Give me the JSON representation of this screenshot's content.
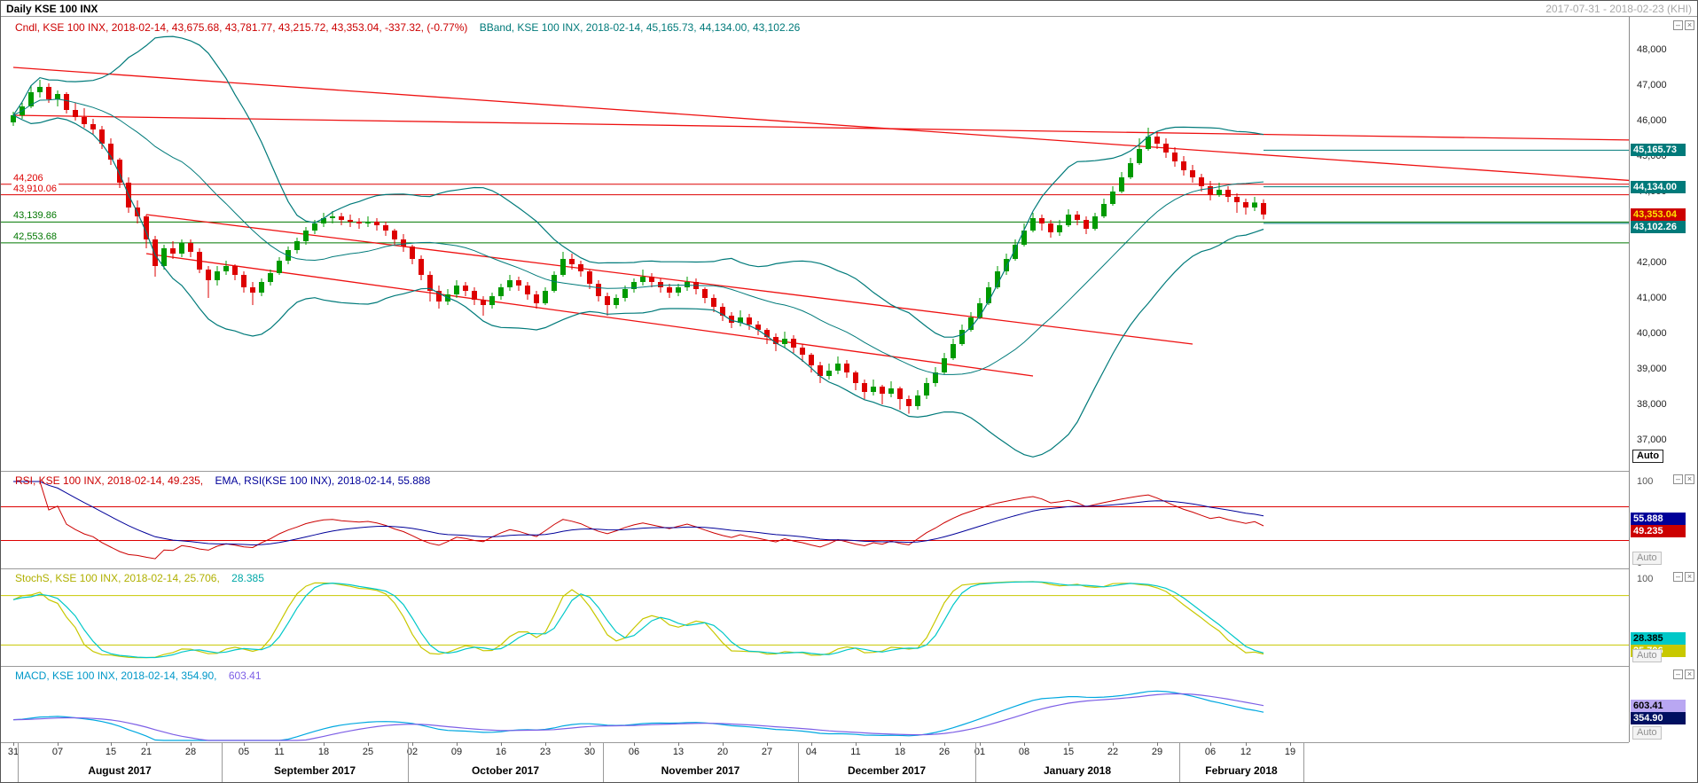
{
  "titlebar": {
    "title": "Daily KSE 100 INX",
    "date_range": "2017-07-31 - 2018-02-23 (KHI)"
  },
  "colors": {
    "bull": "#009a00",
    "bear": "#dd0000",
    "bband": "#007a7a",
    "trend": "#ee1111",
    "support": "#007700",
    "rsi": "#cc0000",
    "rsi_ema": "#000099",
    "stoch_k": "#c8c800",
    "stoch_d": "#00c8c8",
    "macd": "#00a8e0",
    "macd_signal": "#7d5fe6"
  },
  "main_panel": {
    "legend_cndl": "Cndl, KSE 100 INX, 2018-02-14, 43,675.68, 43,781.77, 43,215.72, 43,353.04, -337.32, (-0.77%)",
    "legend_bband": "BBand, KSE 100 INX, 2018-02-14, 45,165.73, 44,134.00, 43,102.26",
    "auto_label": "Auto",
    "y_tick_labels": [
      "48,000",
      "47,000",
      "46,000",
      "45,000",
      "44,000",
      "43,000",
      "42,000",
      "41,000",
      "40,000",
      "39,000",
      "38,000",
      "37,000"
    ],
    "badges": [
      {
        "label": "45,165.73",
        "value": 45165.73,
        "bg": "#007a7a",
        "fg": "#ffffff"
      },
      {
        "label": "44,134.00",
        "value": 44134.0,
        "bg": "#007a7a",
        "fg": "#ffffff"
      },
      {
        "label": "43,353.04",
        "value": 43353.04,
        "bg": "#cc0000",
        "fg": "#ffe400"
      },
      {
        "label": "43,102.26",
        "value": 43102.26,
        "bg": "#007a7a",
        "fg": "#ffffff"
      }
    ]
  },
  "rsi_panel": {
    "legend_rsi": "RSI, KSE 100 INX, 2018-02-14, 49.235,",
    "legend_ema": "EMA, RSI(KSE 100 INX), 2018-02-14, 55.888",
    "levels": [
      70,
      30
    ],
    "scale": [
      "100",
      "0"
    ],
    "badges": [
      {
        "label": "55.888",
        "value": 55.888,
        "bg": "#000099",
        "fg": "#ffffff"
      },
      {
        "label": "49.235",
        "value": 49.235,
        "bg": "#cc0000",
        "fg": "#ffffff"
      }
    ],
    "auto_label": "Auto"
  },
  "stoch_panel": {
    "legend_k": "StochS, KSE 100 INX, 2018-02-14, 25.706,",
    "legend_d": "28.385",
    "levels": [
      80,
      20
    ],
    "scale": [
      "100",
      "0"
    ],
    "badges": [
      {
        "label": "28.385",
        "value": 28.385,
        "bg": "#00c8c8",
        "fg": "#000000"
      },
      {
        "label": "25.706",
        "value": 25.706,
        "bg": "#c8c800",
        "fg": "#ffffff"
      }
    ],
    "auto_label": "Auto"
  },
  "macd_panel": {
    "legend_macd": "MACD, KSE 100 INX, 2018-02-14, 354.90,",
    "legend_signal": "603.41",
    "badges": [
      {
        "label": "603.41",
        "value": 603.41,
        "bg": "#b9a7f2",
        "fg": "#000000"
      },
      {
        "label": "354.90",
        "value": 354.9,
        "bg": "#001060",
        "fg": "#ffffff"
      }
    ],
    "auto_label": "Auto"
  },
  "panel_icons": {
    "restore": "–",
    "close": "×"
  },
  "chart_data": {
    "type": "candlestick",
    "title": "Daily KSE 100 INX",
    "symbol": "KSE 100 INX",
    "timeframe": "Daily",
    "visible_range": "2017-07-31 - 2018-02-23",
    "ylim": [
      36125,
      48925
    ],
    "y_ticks": [
      48000,
      47000,
      46000,
      45000,
      44000,
      43000,
      42000,
      41000,
      40000,
      39000,
      38000,
      37000
    ],
    "last_values": {
      "date": "2018-02-14",
      "open": 43675.68,
      "high": 43781.77,
      "low": 43215.72,
      "close": 43353.04,
      "change": -337.32,
      "change_pct": "-0.77%",
      "bband_upper": 45165.73,
      "bband_middle": 44134.0,
      "bband_lower": 43102.26,
      "rsi": 49.235,
      "rsi_ema": 55.888,
      "stoch_k": 25.706,
      "stoch_d": 28.385,
      "macd": 354.9,
      "macd_signal": 603.41
    },
    "hlines": [
      {
        "value": 44206,
        "label": "44,206",
        "color": "#dd0000"
      },
      {
        "value": 43910.06,
        "label": "43,910.06",
        "color": "#dd0000"
      },
      {
        "value": 43139.86,
        "label": "43,139.86",
        "color": "#007700"
      },
      {
        "value": 42553.68,
        "label": "42,553.68",
        "color": "#007700"
      }
    ],
    "tlines": [
      {
        "i1": 0,
        "p1": 47500,
        "i2": 183,
        "p2": 44300
      },
      {
        "i1": 0,
        "p1": 46150,
        "i2": 183,
        "p2": 45450
      },
      {
        "i1": 15,
        "p1": 43350,
        "i2": 133,
        "p2": 39700
      },
      {
        "i1": 15,
        "p1": 42250,
        "i2": 115,
        "p2": 38800
      }
    ],
    "x_ticks": [
      {
        "label": "31",
        "i": 0
      },
      {
        "label": "07",
        "i": 5
      },
      {
        "label": "15",
        "i": 11
      },
      {
        "label": "21",
        "i": 15
      },
      {
        "label": "28",
        "i": 20
      },
      {
        "label": "05",
        "i": 26
      },
      {
        "label": "11",
        "i": 30
      },
      {
        "label": "18",
        "i": 35
      },
      {
        "label": "25",
        "i": 40
      },
      {
        "label": "02",
        "i": 45
      },
      {
        "label": "09",
        "i": 50
      },
      {
        "label": "16",
        "i": 55
      },
      {
        "label": "23",
        "i": 60
      },
      {
        "label": "30",
        "i": 65
      },
      {
        "label": "06",
        "i": 70
      },
      {
        "label": "13",
        "i": 75
      },
      {
        "label": "20",
        "i": 80
      },
      {
        "label": "27",
        "i": 85
      },
      {
        "label": "04",
        "i": 90
      },
      {
        "label": "11",
        "i": 95
      },
      {
        "label": "18",
        "i": 100
      },
      {
        "label": "26",
        "i": 105
      },
      {
        "label": "01",
        "i": 109
      },
      {
        "label": "08",
        "i": 114
      },
      {
        "label": "15",
        "i": 119
      },
      {
        "label": "22",
        "i": 124
      },
      {
        "label": "29",
        "i": 129
      },
      {
        "label": "06",
        "i": 135
      },
      {
        "label": "12",
        "i": 139
      },
      {
        "label": "19",
        "i": 144
      }
    ],
    "months": [
      {
        "label": "August 2017",
        "a": 1,
        "b": 24
      },
      {
        "label": "September 2017",
        "a": 24,
        "b": 45
      },
      {
        "label": "October 2017",
        "a": 45,
        "b": 67
      },
      {
        "label": "November 2017",
        "a": 67,
        "b": 89
      },
      {
        "label": "December 2017",
        "a": 89,
        "b": 109
      },
      {
        "label": "January 2018",
        "a": 109,
        "b": 132
      },
      {
        "label": "February 2018",
        "a": 132,
        "b": 146
      }
    ],
    "ohlc": [
      [
        45950,
        46250,
        45850,
        46150
      ],
      [
        46150,
        46500,
        46050,
        46400
      ],
      [
        46400,
        47000,
        46350,
        46800
      ],
      [
        46800,
        47150,
        46650,
        46950
      ],
      [
        46950,
        47050,
        46500,
        46600
      ],
      [
        46600,
        46850,
        46400,
        46750
      ],
      [
        46750,
        46800,
        46200,
        46300
      ],
      [
        46300,
        46500,
        46000,
        46100
      ],
      [
        46100,
        46350,
        45800,
        45900
      ],
      [
        45900,
        46050,
        45600,
        45750
      ],
      [
        45750,
        45850,
        45200,
        45350
      ],
      [
        45350,
        45500,
        44750,
        44900
      ],
      [
        44900,
        44950,
        44100,
        44250
      ],
      [
        44250,
        44400,
        43400,
        43550
      ],
      [
        43550,
        43750,
        43100,
        43300
      ],
      [
        43300,
        43350,
        42400,
        42650
      ],
      [
        42650,
        42750,
        41600,
        41900
      ],
      [
        41900,
        42500,
        41800,
        42400
      ],
      [
        42400,
        42600,
        42100,
        42250
      ],
      [
        42250,
        42650,
        42150,
        42550
      ],
      [
        42550,
        42650,
        42150,
        42300
      ],
      [
        42300,
        42400,
        41700,
        41800
      ],
      [
        41800,
        41900,
        41000,
        41500
      ],
      [
        41500,
        41900,
        41350,
        41750
      ],
      [
        41750,
        42050,
        41650,
        41900
      ],
      [
        41900,
        41950,
        41500,
        41650
      ],
      [
        41650,
        41750,
        41150,
        41300
      ],
      [
        41300,
        41450,
        40800,
        41150
      ],
      [
        41150,
        41550,
        41050,
        41450
      ],
      [
        41450,
        41800,
        41350,
        41700
      ],
      [
        41700,
        42150,
        41650,
        42050
      ],
      [
        42050,
        42450,
        41950,
        42350
      ],
      [
        42350,
        42700,
        42250,
        42600
      ],
      [
        42600,
        43000,
        42500,
        42900
      ],
      [
        42900,
        43200,
        42800,
        43100
      ],
      [
        43100,
        43400,
        43000,
        43250
      ],
      [
        43250,
        43450,
        43100,
        43300
      ],
      [
        43300,
        43400,
        43050,
        43200
      ],
      [
        43200,
        43350,
        43000,
        43150
      ],
      [
        43150,
        43250,
        42950,
        43100
      ],
      [
        43100,
        43300,
        43000,
        43150
      ],
      [
        43150,
        43250,
        42900,
        43050
      ],
      [
        43050,
        43150,
        42750,
        42900
      ],
      [
        42900,
        42950,
        42500,
        42650
      ],
      [
        42650,
        42800,
        42300,
        42450
      ],
      [
        42450,
        42500,
        41950,
        42100
      ],
      [
        42100,
        42200,
        41500,
        41650
      ],
      [
        41650,
        41750,
        40900,
        41200
      ],
      [
        41200,
        41350,
        40700,
        40900
      ],
      [
        40900,
        41250,
        40800,
        41100
      ],
      [
        41100,
        41500,
        41000,
        41350
      ],
      [
        41350,
        41450,
        41050,
        41200
      ],
      [
        41200,
        41300,
        40800,
        40950
      ],
      [
        40950,
        41050,
        40500,
        40800
      ],
      [
        40800,
        41150,
        40700,
        41050
      ],
      [
        41050,
        41400,
        40950,
        41300
      ],
      [
        41300,
        41650,
        41200,
        41500
      ],
      [
        41500,
        41600,
        41200,
        41350
      ],
      [
        41350,
        41450,
        40950,
        41100
      ],
      [
        41100,
        41200,
        40700,
        40850
      ],
      [
        40850,
        41300,
        40800,
        41200
      ],
      [
        41200,
        41750,
        41150,
        41650
      ],
      [
        41650,
        42300,
        41600,
        42100
      ],
      [
        42100,
        42250,
        41800,
        41950
      ],
      [
        41950,
        42050,
        41600,
        41750
      ],
      [
        41750,
        41800,
        41250,
        41400
      ],
      [
        41400,
        41500,
        40900,
        41050
      ],
      [
        41050,
        41150,
        40500,
        40800
      ],
      [
        40800,
        41100,
        40700,
        41000
      ],
      [
        41000,
        41350,
        40900,
        41250
      ],
      [
        41250,
        41550,
        41150,
        41450
      ],
      [
        41450,
        41800,
        41350,
        41600
      ],
      [
        41600,
        41700,
        41300,
        41450
      ],
      [
        41450,
        41550,
        41150,
        41300
      ],
      [
        41300,
        41400,
        41000,
        41150
      ],
      [
        41150,
        41400,
        41050,
        41300
      ],
      [
        41300,
        41600,
        41200,
        41450
      ],
      [
        41450,
        41550,
        41100,
        41250
      ],
      [
        41250,
        41300,
        40850,
        41000
      ],
      [
        41000,
        41100,
        40600,
        40750
      ],
      [
        40750,
        40850,
        40350,
        40500
      ],
      [
        40500,
        40600,
        40150,
        40300
      ],
      [
        40300,
        40650,
        40200,
        40450
      ],
      [
        40450,
        40550,
        40100,
        40250
      ],
      [
        40250,
        40350,
        39950,
        40100
      ],
      [
        40100,
        40150,
        39700,
        39900
      ],
      [
        39900,
        40000,
        39500,
        39700
      ],
      [
        39700,
        40050,
        39600,
        39850
      ],
      [
        39850,
        39950,
        39450,
        39600
      ],
      [
        39600,
        39700,
        39200,
        39400
      ],
      [
        39400,
        39450,
        38900,
        39100
      ],
      [
        39100,
        39200,
        38600,
        38800
      ],
      [
        38800,
        39150,
        38700,
        38950
      ],
      [
        38950,
        39350,
        38850,
        39150
      ],
      [
        39150,
        39250,
        38750,
        38900
      ],
      [
        38900,
        38950,
        38400,
        38600
      ],
      [
        38600,
        38700,
        38150,
        38350
      ],
      [
        38350,
        38700,
        38250,
        38500
      ],
      [
        38500,
        38550,
        38000,
        38300
      ],
      [
        38300,
        38650,
        38200,
        38450
      ],
      [
        38450,
        38500,
        37850,
        38150
      ],
      [
        38150,
        38250,
        37736,
        37950
      ],
      [
        37950,
        38400,
        37850,
        38250
      ],
      [
        38250,
        38750,
        38150,
        38600
      ],
      [
        38600,
        39050,
        38500,
        38900
      ],
      [
        38900,
        39450,
        38850,
        39300
      ],
      [
        39300,
        39850,
        39250,
        39700
      ],
      [
        39700,
        40250,
        39650,
        40100
      ],
      [
        40100,
        40600,
        40050,
        40450
      ],
      [
        40450,
        41000,
        40400,
        40850
      ],
      [
        40850,
        41450,
        40800,
        41300
      ],
      [
        41300,
        41900,
        41250,
        41750
      ],
      [
        41750,
        42250,
        41650,
        42100
      ],
      [
        42100,
        42650,
        42050,
        42500
      ],
      [
        42500,
        43100,
        42450,
        42900
      ],
      [
        42900,
        43400,
        42850,
        43250
      ],
      [
        43250,
        43350,
        42900,
        43100
      ],
      [
        43100,
        43200,
        42700,
        42850
      ],
      [
        42850,
        43200,
        42750,
        43050
      ],
      [
        43050,
        43500,
        43000,
        43350
      ],
      [
        43350,
        43450,
        43050,
        43200
      ],
      [
        43200,
        43300,
        42800,
        42950
      ],
      [
        42950,
        43400,
        42900,
        43300
      ],
      [
        43300,
        43800,
        43250,
        43650
      ],
      [
        43650,
        44150,
        43600,
        44000
      ],
      [
        44000,
        44550,
        43950,
        44400
      ],
      [
        44400,
        44950,
        44350,
        44800
      ],
      [
        44800,
        45500,
        44750,
        45200
      ],
      [
        45200,
        45800,
        45150,
        45550
      ],
      [
        45550,
        45700,
        45200,
        45350
      ],
      [
        45350,
        45500,
        44950,
        45100
      ],
      [
        45100,
        45250,
        44700,
        44850
      ],
      [
        44850,
        45000,
        44450,
        44600
      ],
      [
        44600,
        44750,
        44250,
        44400
      ],
      [
        44400,
        44500,
        44000,
        44150
      ],
      [
        44150,
        44300,
        43750,
        43900
      ],
      [
        43900,
        44250,
        43850,
        44050
      ],
      [
        44050,
        44150,
        43700,
        43850
      ],
      [
        43850,
        43950,
        43400,
        43700
      ],
      [
        43700,
        43800,
        43350,
        43550
      ],
      [
        43550,
        43850,
        43450,
        43690
      ],
      [
        43675.68,
        43781.77,
        43215.72,
        43353.04
      ]
    ]
  }
}
